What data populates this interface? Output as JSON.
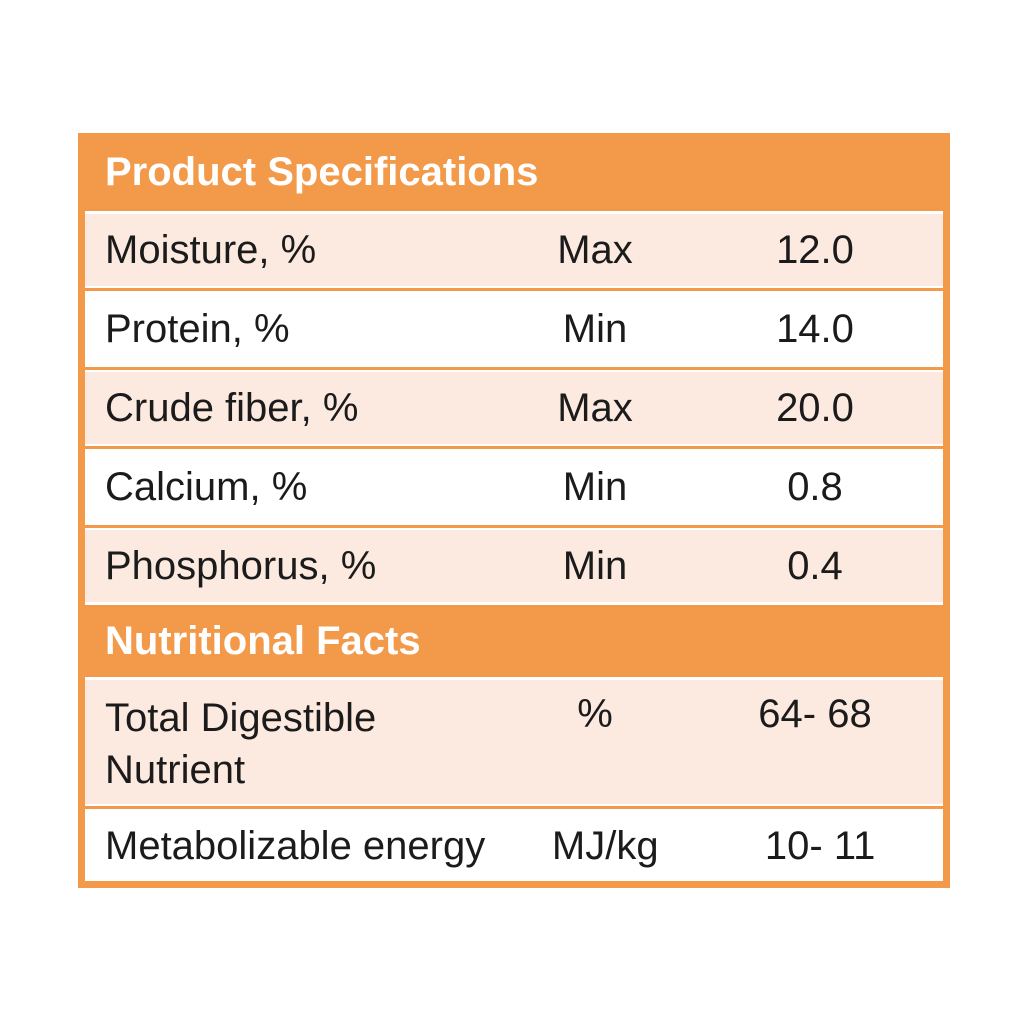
{
  "colors": {
    "accent_orange": "#F39A4A",
    "row_pink": "#FCEAE1",
    "row_white": "#FFFFFF",
    "header_text": "#FFFFFF",
    "body_text": "#1B1B1B",
    "page_background": "#FFFFFF"
  },
  "table": {
    "sections": [
      {
        "title": "Product Specifications",
        "rows": [
          {
            "name": "Moisture, %",
            "limit": "Max",
            "value": "12.0"
          },
          {
            "name": "Protein, %",
            "limit": "Min",
            "value": "14.0"
          },
          {
            "name": "Crude fiber, %",
            "limit": "Max",
            "value": "20.0"
          },
          {
            "name": "Calcium, %",
            "limit": "Min",
            "value": "0.8"
          },
          {
            "name": "Phosphorus, %",
            "limit": "Min",
            "value": "0.4"
          }
        ]
      },
      {
        "title": "Nutritional Facts",
        "rows": [
          {
            "name": "Total Digestible Nutrient",
            "limit": "%",
            "value": "64- 68"
          },
          {
            "name": "Metabolizable energy",
            "limit": "MJ/kg",
            "value": "10- 11"
          }
        ]
      }
    ]
  }
}
